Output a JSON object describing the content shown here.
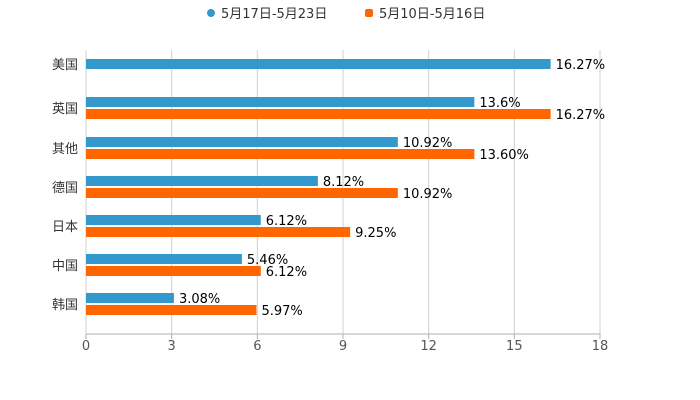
{
  "chart_data": {
    "type": "bar",
    "orientation": "horizontal",
    "categories": [
      "美国",
      "英国",
      "其他",
      "德国",
      "日本",
      "中国",
      "韩国"
    ],
    "series": [
      {
        "name": "5月17日-5月23日",
        "color": "#3399cc",
        "values": [
          16.27,
          13.6,
          10.92,
          8.12,
          6.12,
          5.46,
          3.08
        ],
        "labels": [
          "16.27%",
          "13.6%",
          "10.92%",
          "8.12%",
          "6.12%",
          "5.46%",
          "3.08%"
        ]
      },
      {
        "name": "5月10日-5月16日",
        "color": "#ff6600",
        "values": [
          null,
          16.27,
          13.6,
          10.92,
          9.25,
          6.12,
          5.97
        ],
        "labels": [
          null,
          "16.27%",
          "13.60%",
          "10.92%",
          "9.25%",
          "6.12%",
          "5.97%"
        ]
      }
    ],
    "xlim": [
      0,
      18
    ],
    "xticks": [
      "0",
      "3",
      "6",
      "9",
      "12",
      "15",
      "18"
    ],
    "grid": true,
    "legend_position": "top-center",
    "title": "",
    "xlabel": "",
    "ylabel": ""
  }
}
